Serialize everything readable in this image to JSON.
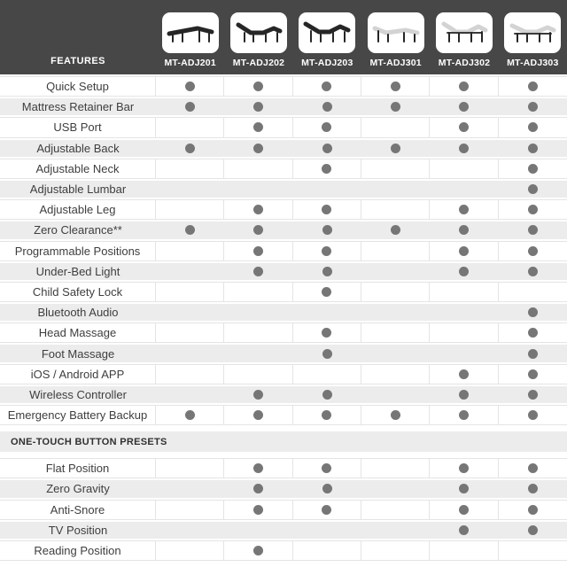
{
  "header": {
    "features_label": "FEATURES",
    "models": [
      {
        "name": "MT-ADJ201",
        "icon": "bed-flat-dark-icon"
      },
      {
        "name": "MT-ADJ202",
        "icon": "bed-articulated-dark-icon"
      },
      {
        "name": "MT-ADJ203",
        "icon": "bed-head-foot-raised-dark-icon"
      },
      {
        "name": "MT-ADJ301",
        "icon": "bed-flat-light-icon"
      },
      {
        "name": "MT-ADJ302",
        "icon": "bed-articulated-light-icon"
      },
      {
        "name": "MT-ADJ303",
        "icon": "bed-head-foot-raised-light-icon"
      }
    ]
  },
  "colors": {
    "header_bg": "#474747",
    "row_alt_bg": "#ececec",
    "row_border": "#e4e4e4",
    "dot": "#767676",
    "label_text": "#3e3e3e",
    "header_text": "#ffffff"
  },
  "sections": [
    {
      "title": "",
      "rows": [
        {
          "feature": "Quick Setup",
          "availability": [
            1,
            1,
            1,
            1,
            1,
            1
          ]
        },
        {
          "feature": "Mattress Retainer Bar",
          "availability": [
            1,
            1,
            1,
            1,
            1,
            1
          ]
        },
        {
          "feature": "USB Port",
          "availability": [
            0,
            1,
            1,
            0,
            1,
            1
          ]
        },
        {
          "feature": "Adjustable Back",
          "availability": [
            1,
            1,
            1,
            1,
            1,
            1
          ]
        },
        {
          "feature": "Adjustable Neck",
          "availability": [
            0,
            0,
            1,
            0,
            0,
            1
          ]
        },
        {
          "feature": "Adjustable Lumbar",
          "availability": [
            0,
            0,
            0,
            0,
            0,
            1
          ]
        },
        {
          "feature": "Adjustable Leg",
          "availability": [
            0,
            1,
            1,
            0,
            1,
            1
          ]
        },
        {
          "feature": "Zero Clearance**",
          "availability": [
            1,
            1,
            1,
            1,
            1,
            1
          ]
        },
        {
          "feature": "Programmable Positions",
          "availability": [
            0,
            1,
            1,
            0,
            1,
            1
          ]
        },
        {
          "feature": "Under-Bed Light",
          "availability": [
            0,
            1,
            1,
            0,
            1,
            1
          ]
        },
        {
          "feature": "Child Safety Lock",
          "availability": [
            0,
            0,
            1,
            0,
            0,
            0
          ]
        },
        {
          "feature": "Bluetooth Audio",
          "availability": [
            0,
            0,
            0,
            0,
            0,
            1
          ]
        },
        {
          "feature": "Head Massage",
          "availability": [
            0,
            0,
            1,
            0,
            0,
            1
          ]
        },
        {
          "feature": "Foot Massage",
          "availability": [
            0,
            0,
            1,
            0,
            0,
            1
          ]
        },
        {
          "feature": "iOS / Android APP",
          "availability": [
            0,
            0,
            0,
            0,
            1,
            1
          ]
        },
        {
          "feature": "Wireless Controller",
          "availability": [
            0,
            1,
            1,
            0,
            1,
            1
          ]
        },
        {
          "feature": "Emergency Battery Backup",
          "availability": [
            1,
            1,
            1,
            1,
            1,
            1
          ]
        }
      ]
    },
    {
      "title": "ONE-TOUCH BUTTON PRESETS",
      "rows": [
        {
          "feature": "Flat Position",
          "availability": [
            0,
            1,
            1,
            0,
            1,
            1
          ]
        },
        {
          "feature": "Zero Gravity",
          "availability": [
            0,
            1,
            1,
            0,
            1,
            1
          ]
        },
        {
          "feature": "Anti-Snore",
          "availability": [
            0,
            1,
            1,
            0,
            1,
            1
          ]
        },
        {
          "feature": "TV Position",
          "availability": [
            0,
            0,
            0,
            0,
            1,
            1
          ]
        },
        {
          "feature": "Reading Position",
          "availability": [
            0,
            1,
            0,
            0,
            0,
            0
          ]
        }
      ]
    }
  ]
}
